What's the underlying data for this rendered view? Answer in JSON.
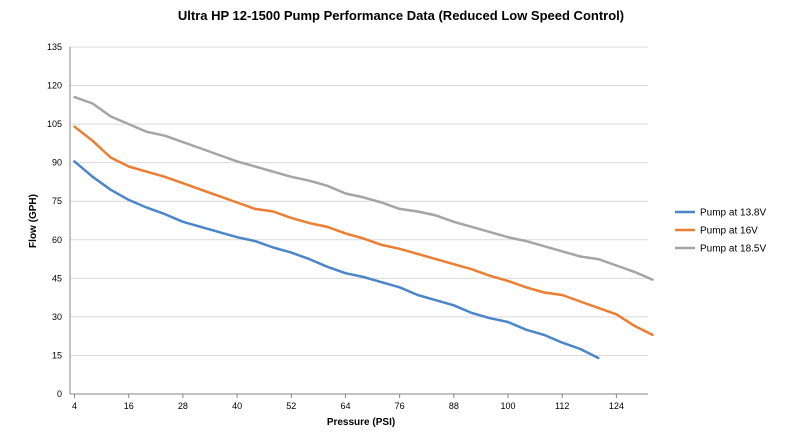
{
  "chart_data": {
    "type": "line",
    "title": "Ultra HP 12-1500 Pump Performance Data (Reduced Low Speed  Control)",
    "xlabel": "Pressure (PSI)",
    "ylabel": "Flow (GPH)",
    "xlim": [
      3,
      131
    ],
    "ylim": [
      0,
      135
    ],
    "xticks": [
      4,
      16,
      28,
      40,
      52,
      64,
      76,
      88,
      100,
      112,
      124
    ],
    "yticks": [
      0,
      15,
      30,
      45,
      60,
      75,
      90,
      105,
      120,
      135
    ],
    "grid": "horizontal",
    "legend_position": "right",
    "series": [
      {
        "name": "Pump at 13.8V",
        "color": "#4a86c8",
        "x": [
          4,
          8,
          12,
          16,
          20,
          24,
          28,
          32,
          36,
          40,
          44,
          48,
          52,
          56,
          60,
          64,
          68,
          72,
          76,
          80,
          84,
          88,
          92,
          96,
          100,
          104,
          108,
          112,
          116,
          120
        ],
        "values": [
          90.5,
          84.5,
          79.5,
          75.5,
          72.5,
          70,
          67,
          65,
          63,
          61,
          59.5,
          57,
          55,
          52.5,
          49.5,
          47,
          45.5,
          43.5,
          41.5,
          38.5,
          36.5,
          34.5,
          31.5,
          29.5,
          28,
          25,
          23,
          20,
          17.5,
          14
        ]
      },
      {
        "name": "Pump at 16V",
        "color": "#ed7d31",
        "x": [
          4,
          8,
          12,
          16,
          20,
          24,
          28,
          32,
          36,
          40,
          44,
          48,
          52,
          56,
          60,
          64,
          68,
          72,
          76,
          80,
          84,
          88,
          92,
          96,
          100,
          104,
          108,
          112,
          116,
          120,
          124,
          128,
          132
        ],
        "values": [
          104,
          98.5,
          92,
          88.5,
          86.5,
          84.5,
          82,
          79.5,
          77,
          74.5,
          72,
          71,
          68.5,
          66.5,
          65,
          62.5,
          60.5,
          58,
          56.5,
          54.5,
          52.5,
          50.5,
          48.5,
          46,
          44,
          41.5,
          39.5,
          38.5,
          36,
          33.5,
          31,
          26.5,
          23
        ]
      },
      {
        "name": "Pump at 18.5V",
        "color": "#a5a5a5",
        "x": [
          4,
          8,
          12,
          16,
          20,
          24,
          28,
          32,
          36,
          40,
          44,
          48,
          52,
          56,
          60,
          64,
          68,
          72,
          76,
          80,
          84,
          88,
          92,
          96,
          100,
          104,
          108,
          112,
          116,
          120,
          124,
          128,
          132
        ],
        "values": [
          115.5,
          113,
          108,
          105,
          102,
          100.5,
          98,
          95.5,
          93,
          90.5,
          88.5,
          86.5,
          84.5,
          83,
          81,
          78,
          76.5,
          74.5,
          72,
          71,
          69.5,
          67,
          65,
          63,
          61,
          59.5,
          57.5,
          55.5,
          53.5,
          52.5,
          50,
          47.5,
          44.5
        ]
      }
    ]
  }
}
